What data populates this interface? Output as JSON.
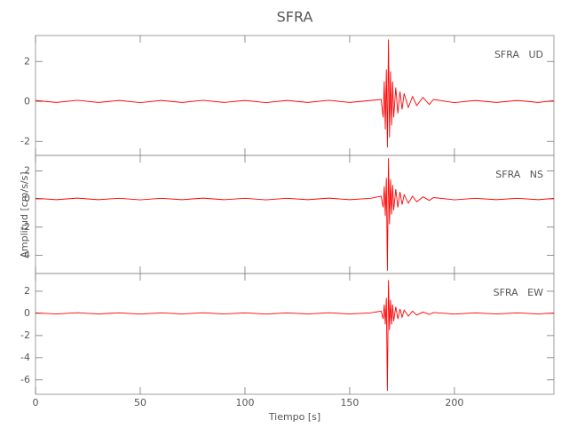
{
  "title": "SFRA",
  "chart_data": [
    {
      "type": "line",
      "annotation": "SFRA   UD",
      "color": "#ff0000",
      "x": [
        0,
        10,
        20,
        30,
        40,
        50,
        60,
        70,
        80,
        90,
        100,
        110,
        120,
        130,
        140,
        150,
        160,
        165,
        166,
        166.5,
        167,
        167.5,
        168,
        168.5,
        169,
        169.5,
        170,
        170.5,
        171,
        172,
        173,
        174,
        175,
        176,
        178,
        180,
        182,
        185,
        188,
        190,
        200,
        210,
        220,
        230,
        240,
        247.5
      ],
      "values": [
        0.05,
        -0.05,
        0.06,
        -0.05,
        0.05,
        -0.06,
        0.05,
        -0.05,
        0.06,
        -0.05,
        0.05,
        -0.06,
        0.05,
        -0.05,
        0.06,
        -0.05,
        0.05,
        0.1,
        -0.8,
        1.0,
        -1.4,
        1.6,
        -2.3,
        3.1,
        -1.8,
        1.5,
        -1.2,
        1.0,
        -0.8,
        0.7,
        -0.6,
        0.5,
        -0.4,
        0.4,
        -0.3,
        0.25,
        -0.2,
        0.2,
        -0.15,
        0.1,
        -0.06,
        0.05,
        -0.05,
        0.05,
        -0.05,
        0.04
      ],
      "xlim": [
        0,
        247.5
      ],
      "ylim": [
        -2.7,
        3.3
      ],
      "yticks": [
        -2,
        0,
        2
      ]
    },
    {
      "type": "line",
      "annotation": "SFRA   NS",
      "color": "#ff0000",
      "ylabel": "Amplitud [cm/s/s]",
      "x": [
        0,
        10,
        20,
        30,
        40,
        50,
        60,
        70,
        80,
        90,
        100,
        110,
        120,
        130,
        140,
        150,
        160,
        165,
        166,
        166.5,
        167,
        167.5,
        168,
        168.5,
        169,
        169.5,
        170,
        170.5,
        171,
        172,
        173,
        174,
        175,
        176,
        178,
        180,
        182,
        185,
        188,
        190,
        200,
        210,
        220,
        230,
        240,
        247.5
      ],
      "values": [
        0.05,
        -0.05,
        0.06,
        -0.05,
        0.05,
        -0.06,
        0.05,
        -0.05,
        0.06,
        -0.05,
        0.05,
        -0.06,
        0.05,
        -0.05,
        0.06,
        -0.05,
        0.05,
        0.2,
        -0.6,
        0.9,
        -1.2,
        1.5,
        -5.1,
        2.9,
        -1.8,
        1.4,
        -1.1,
        1.0,
        -0.8,
        0.7,
        -0.6,
        0.5,
        -0.4,
        0.3,
        -0.3,
        0.2,
        -0.2,
        0.15,
        -0.1,
        0.1,
        -0.06,
        0.05,
        -0.05,
        0.05,
        -0.05,
        0.04
      ],
      "xlim": [
        0,
        247.5
      ],
      "ylim": [
        -5.3,
        3.1
      ],
      "yticks": [
        -4,
        -2,
        0,
        2
      ]
    },
    {
      "type": "line",
      "annotation": "SFRA   EW",
      "color": "#ff0000",
      "xlabel": "Tiempo [s]",
      "x": [
        0,
        10,
        20,
        30,
        40,
        50,
        60,
        70,
        80,
        90,
        100,
        110,
        120,
        130,
        140,
        150,
        160,
        165,
        166,
        166.5,
        167,
        167.5,
        168,
        168.5,
        169,
        169.5,
        170,
        170.5,
        171,
        172,
        173,
        174,
        175,
        176,
        178,
        180,
        182,
        185,
        188,
        190,
        200,
        210,
        220,
        230,
        240,
        247.5
      ],
      "values": [
        0.05,
        -0.05,
        0.06,
        -0.05,
        0.05,
        -0.06,
        0.05,
        -0.05,
        0.06,
        -0.05,
        0.05,
        -0.06,
        0.05,
        -0.05,
        0.06,
        -0.05,
        0.05,
        0.2,
        -0.5,
        0.8,
        -1.0,
        1.4,
        -7.0,
        3.0,
        -1.5,
        1.2,
        -1.0,
        0.8,
        -0.7,
        0.6,
        -0.5,
        0.4,
        -0.35,
        0.3,
        -0.25,
        0.2,
        -0.15,
        0.12,
        -0.1,
        0.08,
        -0.06,
        0.05,
        -0.05,
        0.05,
        -0.05,
        0.04
      ],
      "xlim": [
        0,
        247.5
      ],
      "ylim": [
        -7.3,
        3.6
      ],
      "yticks": [
        -6,
        -4,
        -2,
        0,
        2
      ],
      "xticks": [
        0,
        50,
        100,
        150,
        200
      ]
    }
  ]
}
